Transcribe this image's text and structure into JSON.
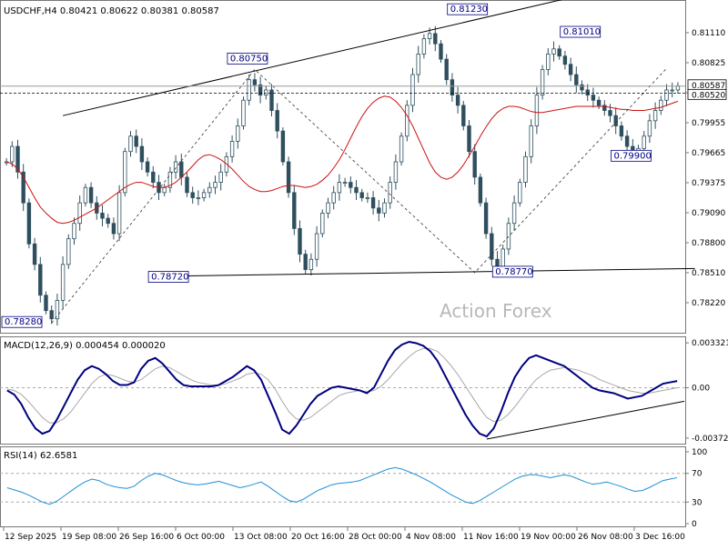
{
  "header": {
    "symbol_line": "USDCHF,H4  0.80421 0.80622 0.80381 0.80587"
  },
  "watermark": "Action Forex",
  "colors": {
    "candle": "#2f4f5f",
    "ma": "#cc1111",
    "macd_line": "#000080",
    "macd_signal": "#a8a8a8",
    "rsi": "#1e8fd6",
    "annotation": "#000080",
    "grid": "#999999"
  },
  "x_axis_labels": [
    "12 Sep 2025",
    "19 Sep 08:00",
    "26 Sep 16:00",
    "6 Oct 00:00",
    "13 Oct 08:00",
    "20 Oct 16:00",
    "28 Oct 00:00",
    "4 Nov 08:00",
    "11 Nov 16:00",
    "19 Nov 00:00",
    "26 Nov 08:00",
    "3 Dec 16:00"
  ],
  "price_axis": {
    "labels": [
      "0.81110",
      "0.80825",
      "0.80250",
      "0.79955",
      "0.79665",
      "0.79375",
      "0.79090",
      "0.78800",
      "0.78510",
      "0.78220"
    ],
    "current_label": "0.80587",
    "level_label": "0.80520",
    "range": [
      0.7822,
      0.814
    ]
  },
  "annotations": [
    {
      "text": "0.78280"
    },
    {
      "text": "0.80750"
    },
    {
      "text": "0.78720"
    },
    {
      "text": "0.81230"
    },
    {
      "text": "0.78770"
    },
    {
      "text": "0.81010"
    },
    {
      "text": "0.79900"
    }
  ],
  "macd": {
    "label": "MACD(12,26,9) 0.000454 0.000020",
    "axis_labels": [
      "0.003321",
      "0.00",
      "-0.003723"
    ]
  },
  "rsi": {
    "label": "RSI(14) 62.6581",
    "axis_labels": [
      "100",
      "70",
      "30",
      "0"
    ]
  },
  "chart_data": {
    "type": "candlestick",
    "symbol": "USDCHF",
    "timeframe": "H4",
    "last_quote": {
      "open": 0.80421,
      "high": 0.80622,
      "low": 0.80381,
      "close": 0.80587
    },
    "close_series": [
      0.7985,
      0.8,
      0.7975,
      0.7945,
      0.7905,
      0.7885,
      0.7855,
      0.784,
      0.7832,
      0.785,
      0.7885,
      0.791,
      0.7925,
      0.7945,
      0.796,
      0.7945,
      0.7935,
      0.793,
      0.7925,
      0.7915,
      0.7955,
      0.7995,
      0.801,
      0.8,
      0.7985,
      0.7975,
      0.7965,
      0.7955,
      0.796,
      0.7975,
      0.7985,
      0.797,
      0.7955,
      0.795,
      0.795,
      0.7955,
      0.796,
      0.7965,
      0.7975,
      0.799,
      0.8005,
      0.802,
      0.8045,
      0.8065,
      0.806,
      0.805,
      0.8055,
      0.8035,
      0.8015,
      0.7985,
      0.7955,
      0.792,
      0.7895,
      0.788,
      0.789,
      0.7915,
      0.7935,
      0.7945,
      0.7955,
      0.7965,
      0.7965,
      0.796,
      0.7955,
      0.795,
      0.795,
      0.794,
      0.7935,
      0.7945,
      0.7965,
      0.7985,
      0.801,
      0.804,
      0.807,
      0.809,
      0.8105,
      0.811,
      0.81,
      0.8085,
      0.8065,
      0.805,
      0.804,
      0.802,
      0.7995,
      0.797,
      0.7945,
      0.7915,
      0.789,
      0.788,
      0.79,
      0.7925,
      0.7945,
      0.7965,
      0.799,
      0.802,
      0.805,
      0.8075,
      0.809,
      0.8095,
      0.8088,
      0.808,
      0.807,
      0.806,
      0.8055,
      0.805,
      0.8045,
      0.804,
      0.8035,
      0.803,
      0.802,
      0.801,
      0.8,
      0.7995,
      0.7998,
      0.801,
      0.8025,
      0.8035,
      0.8045,
      0.8055,
      0.8055,
      0.8059
    ],
    "moving_average": [
      0.7985,
      0.7983,
      0.7978,
      0.797,
      0.796,
      0.795,
      0.7941,
      0.7935,
      0.793,
      0.7926,
      0.7925,
      0.7926,
      0.7928,
      0.7931,
      0.7934,
      0.7937,
      0.794,
      0.7944,
      0.7948,
      0.7952,
      0.7956,
      0.796,
      0.7963,
      0.7965,
      0.7965,
      0.7963,
      0.7961,
      0.796,
      0.796,
      0.7962,
      0.7965,
      0.797,
      0.7975,
      0.7981,
      0.7987,
      0.7991,
      0.7992,
      0.799,
      0.7987,
      0.7983,
      0.7978,
      0.7972,
      0.7966,
      0.7961,
      0.7958,
      0.7956,
      0.7956,
      0.7957,
      0.7959,
      0.7961,
      0.7962,
      0.7962,
      0.7961,
      0.796,
      0.7961,
      0.7963,
      0.7967,
      0.7972,
      0.7979,
      0.7987,
      0.7997,
      0.8008,
      0.8019,
      0.8029,
      0.8037,
      0.8043,
      0.8047,
      0.8049,
      0.8048,
      0.8044,
      0.8038,
      0.803,
      0.802,
      0.8008,
      0.7996,
      0.7984,
      0.7975,
      0.797,
      0.7968,
      0.797,
      0.7975,
      0.7982,
      0.7991,
      0.8,
      0.801,
      0.8019,
      0.8027,
      0.8033,
      0.8037,
      0.8039,
      0.8039,
      0.8038,
      0.8036,
      0.8034,
      0.8033,
      0.8033,
      0.8034,
      0.8035,
      0.8036,
      0.8037,
      0.8038,
      0.8039,
      0.8039,
      0.8039,
      0.8039,
      0.8039,
      0.8039,
      0.8038,
      0.8037,
      0.8036,
      0.8036,
      0.8035,
      0.8035,
      0.8035,
      0.8036,
      0.8037,
      0.8038,
      0.804,
      0.8042,
      0.8044
    ],
    "macd_range": [
      -0.004,
      0.0036
    ],
    "macd_line": [
      -0.0002,
      -0.0005,
      -0.0012,
      -0.0022,
      -0.003,
      -0.0034,
      -0.0032,
      -0.0024,
      -0.0014,
      -0.0004,
      0.0006,
      0.0013,
      0.0016,
      0.0014,
      0.001,
      0.0005,
      0.0002,
      0.0002,
      0.0004,
      0.0014,
      0.002,
      0.0022,
      0.0018,
      0.0012,
      0.0006,
      0.0002,
      0.0001,
      0.0001,
      0.0001,
      0.0001,
      0.0002,
      0.0005,
      0.0008,
      0.0012,
      0.0016,
      0.0013,
      0.0006,
      -0.0006,
      -0.0018,
      -0.0031,
      -0.0034,
      -0.0028,
      -0.002,
      -0.0012,
      -0.0006,
      -0.0003,
      0.0,
      0.0001,
      0.0,
      -0.0001,
      -0.0002,
      -0.0004,
      0.0,
      0.001,
      0.002,
      0.0028,
      0.0032,
      0.0034,
      0.0033,
      0.0031,
      0.0027,
      0.002,
      0.001,
      0.0,
      -0.001,
      -0.002,
      -0.0028,
      -0.0034,
      -0.0036,
      -0.003,
      -0.0018,
      -0.0004,
      0.0008,
      0.0016,
      0.0022,
      0.0024,
      0.0022,
      0.002,
      0.0018,
      0.0016,
      0.0012,
      0.0008,
      0.0004,
      0.0,
      -0.0002,
      -0.0003,
      -0.0004,
      -0.0006,
      -0.0008,
      -0.0007,
      -0.0006,
      -0.0003,
      0.0,
      0.0003,
      0.0004,
      0.0005
    ],
    "macd_signal": [
      -0.0001,
      -0.0002,
      -0.0005,
      -0.001,
      -0.0016,
      -0.0022,
      -0.0026,
      -0.0026,
      -0.0023,
      -0.0018,
      -0.0011,
      -0.0004,
      0.0003,
      0.0008,
      0.001,
      0.0009,
      0.0007,
      0.0005,
      0.0004,
      0.0006,
      0.001,
      0.0014,
      0.0016,
      0.0015,
      0.0012,
      0.0009,
      0.0006,
      0.0004,
      0.0003,
      0.0002,
      0.0002,
      0.0003,
      0.0005,
      0.0007,
      0.001,
      0.0011,
      0.001,
      0.0006,
      -0.0001,
      -0.001,
      -0.0018,
      -0.0023,
      -0.0024,
      -0.0022,
      -0.0018,
      -0.0014,
      -0.001,
      -0.0006,
      -0.0004,
      -0.0003,
      -0.0002,
      -0.0003,
      -0.0002,
      0.0001,
      0.0006,
      0.0012,
      0.0018,
      0.0023,
      0.0027,
      0.0029,
      0.0029,
      0.0027,
      0.0022,
      0.0016,
      0.0009,
      0.0001,
      -0.0007,
      -0.0015,
      -0.0022,
      -0.0025,
      -0.0024,
      -0.002,
      -0.0014,
      -0.0007,
      0.0,
      0.0006,
      0.001,
      0.0013,
      0.0014,
      0.0015,
      0.0014,
      0.0013,
      0.0011,
      0.0009,
      0.0006,
      0.0004,
      0.0002,
      0.0,
      -0.0002,
      -0.0003,
      -0.0004,
      -0.0004,
      -0.0003,
      -0.0002,
      -0.0001,
      0.0
    ],
    "rsi": [
      50,
      47,
      44,
      40,
      35,
      30,
      27,
      31,
      38,
      45,
      52,
      58,
      62,
      60,
      55,
      52,
      50,
      49,
      52,
      60,
      66,
      70,
      68,
      64,
      60,
      57,
      55,
      54,
      55,
      57,
      59,
      56,
      53,
      50,
      52,
      55,
      58,
      52,
      45,
      38,
      32,
      30,
      34,
      40,
      46,
      50,
      54,
      56,
      57,
      58,
      60,
      64,
      68,
      72,
      76,
      78,
      76,
      72,
      68,
      63,
      58,
      52,
      46,
      40,
      35,
      30,
      28,
      32,
      38,
      44,
      50,
      56,
      62,
      66,
      68,
      68,
      66,
      64,
      66,
      68,
      66,
      62,
      58,
      55,
      56,
      58,
      55,
      52,
      48,
      45,
      46,
      50,
      55,
      60,
      62,
      64
    ],
    "rsi_levels": [
      70,
      30
    ],
    "x_labels": [
      "12 Sep 2025",
      "19 Sep 08:00",
      "26 Sep 16:00",
      "6 Oct 00:00",
      "13 Oct 08:00",
      "20 Oct 16:00",
      "28 Oct 00:00",
      "4 Nov 08:00",
      "11 Nov 16:00",
      "19 Nov 00:00",
      "26 Nov 08:00",
      "3 Dec 16:00"
    ]
  }
}
